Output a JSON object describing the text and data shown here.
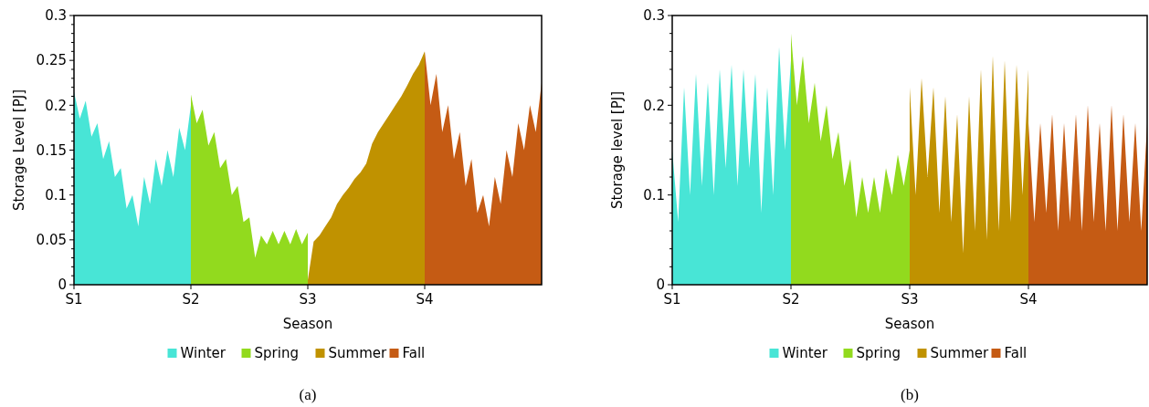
{
  "chart_data": [
    {
      "type": "area",
      "xlabel": "Season",
      "ylabel": "Storage Level [PJ]",
      "annotations": [
        "(a)"
      ],
      "legend": "bottom",
      "grid": false,
      "categories": [
        "S1",
        null,
        null,
        null,
        null,
        null,
        null,
        null,
        null,
        null,
        null,
        null,
        null,
        null,
        null,
        null,
        null,
        null,
        null,
        null,
        "S2",
        null,
        null,
        null,
        null,
        null,
        null,
        null,
        null,
        null,
        null,
        null,
        null,
        null,
        null,
        null,
        null,
        null,
        null,
        null,
        "S3",
        null,
        null,
        null,
        null,
        null,
        null,
        null,
        null,
        null,
        null,
        null,
        null,
        null,
        null,
        null,
        null,
        null,
        null,
        null,
        "S4",
        null,
        null,
        null,
        null,
        null,
        null,
        null,
        null,
        null,
        null,
        null,
        null,
        null,
        null,
        null,
        null,
        null,
        null,
        null,
        null
      ],
      "ylim": [
        0,
        0.3
      ],
      "yticks": [
        0,
        {
          "value": 0.01,
          "label": null
        },
        {
          "value": 0.02,
          "label": null
        },
        {
          "value": 0.03,
          "label": null
        },
        {
          "value": 0.04,
          "label": null
        },
        0.05,
        {
          "value": 0.06,
          "label": null
        },
        {
          "value": 0.07,
          "label": null
        },
        {
          "value": 0.08,
          "label": null
        },
        {
          "value": 0.09,
          "label": null
        },
        0.1,
        {
          "value": 0.11,
          "label": null
        },
        {
          "value": 0.12,
          "label": null
        },
        {
          "value": 0.13,
          "label": null
        },
        {
          "value": 0.14,
          "label": null
        },
        0.15,
        {
          "value": 0.16,
          "label": null
        },
        {
          "value": 0.17,
          "label": null
        },
        {
          "value": 0.18,
          "label": null
        },
        {
          "value": 0.19,
          "label": null
        },
        0.2,
        {
          "value": 0.21,
          "label": null
        },
        {
          "value": 0.22,
          "label": null
        },
        {
          "value": 0.23,
          "label": null
        },
        {
          "value": 0.24,
          "label": null
        },
        0.25,
        {
          "value": 0.26,
          "label": null
        },
        {
          "value": 0.27,
          "label": null
        },
        {
          "value": 0.28,
          "label": null
        },
        {
          "value": 0.29,
          "label": null
        },
        0.3
      ],
      "series": [
        {
          "name": "Winter",
          "color": "#48e5d6",
          "values": [
            0.215,
            0.185,
            0.205,
            0.165,
            0.18,
            0.14,
            0.16,
            0.12,
            0.13,
            0.085,
            0.1,
            0.065,
            0.12,
            0.09,
            0.14,
            0.11,
            0.15,
            0.12,
            0.175,
            0.15,
            0.2,
            null,
            null,
            null,
            null,
            null,
            null,
            null,
            null,
            null,
            null,
            null,
            null,
            null,
            null,
            null,
            null,
            null,
            null,
            null,
            null,
            null,
            null,
            null,
            null,
            null,
            null,
            null,
            null,
            null,
            null,
            null,
            null,
            null,
            null,
            null,
            null,
            null,
            null,
            null,
            null,
            null,
            null,
            null,
            null,
            null,
            null,
            null,
            null,
            null,
            null,
            null,
            null,
            null,
            null,
            null,
            null,
            null,
            null,
            null,
            null
          ]
        },
        {
          "name": "Spring",
          "color": "#92da1e",
          "values": [
            null,
            null,
            null,
            null,
            null,
            null,
            null,
            null,
            null,
            null,
            null,
            null,
            null,
            null,
            null,
            null,
            null,
            null,
            null,
            null,
            0.212,
            0.18,
            0.195,
            0.155,
            0.17,
            0.13,
            0.14,
            0.1,
            0.11,
            0.07,
            0.075,
            0.03,
            0.055,
            0.045,
            0.06,
            0.045,
            0.06,
            0.045,
            0.062,
            0.045,
            0.058,
            null,
            null,
            null,
            null,
            null,
            null,
            null,
            null,
            null,
            null,
            null,
            null,
            null,
            null,
            null,
            null,
            null,
            null,
            null,
            null,
            null,
            null,
            null,
            null,
            null,
            null,
            null,
            null,
            null,
            null,
            null,
            null,
            null,
            null,
            null,
            null,
            null,
            null,
            null,
            null
          ]
        },
        {
          "name": "Summer",
          "color": "#c09200",
          "values": [
            null,
            null,
            null,
            null,
            null,
            null,
            null,
            null,
            null,
            null,
            null,
            null,
            null,
            null,
            null,
            null,
            null,
            null,
            null,
            null,
            null,
            null,
            null,
            null,
            null,
            null,
            null,
            null,
            null,
            null,
            null,
            null,
            null,
            null,
            null,
            null,
            null,
            null,
            null,
            null,
            0.005,
            0.048,
            0.055,
            0.065,
            0.075,
            0.09,
            0.1,
            0.108,
            0.118,
            0.125,
            0.135,
            0.157,
            0.17,
            0.18,
            0.19,
            0.2,
            0.21,
            0.222,
            0.235,
            0.245,
            0.26,
            null,
            null,
            null,
            null,
            null,
            null,
            null,
            null,
            null,
            null,
            null,
            null,
            null,
            null,
            null,
            null,
            null,
            null,
            null,
            null
          ]
        },
        {
          "name": "Fall",
          "color": "#c55b14",
          "values": [
            null,
            null,
            null,
            null,
            null,
            null,
            null,
            null,
            null,
            null,
            null,
            null,
            null,
            null,
            null,
            null,
            null,
            null,
            null,
            null,
            null,
            null,
            null,
            null,
            null,
            null,
            null,
            null,
            null,
            null,
            null,
            null,
            null,
            null,
            null,
            null,
            null,
            null,
            null,
            null,
            null,
            null,
            null,
            null,
            null,
            null,
            null,
            null,
            null,
            null,
            null,
            null,
            null,
            null,
            null,
            null,
            null,
            null,
            null,
            null,
            0.26,
            0.2,
            0.235,
            0.17,
            0.2,
            0.14,
            0.17,
            0.11,
            0.14,
            0.08,
            0.1,
            0.065,
            0.12,
            0.09,
            0.15,
            0.12,
            0.18,
            0.15,
            0.2,
            0.17,
            0.225
          ]
        }
      ]
    },
    {
      "type": "area",
      "xlabel": "Season",
      "ylabel": "Storage level [PJ]",
      "annotations": [
        "(b)"
      ],
      "legend": "bottom",
      "grid": false,
      "categories": [
        "S1",
        null,
        null,
        null,
        null,
        null,
        null,
        null,
        null,
        null,
        null,
        null,
        null,
        null,
        null,
        null,
        null,
        null,
        null,
        null,
        "S2",
        null,
        null,
        null,
        null,
        null,
        null,
        null,
        null,
        null,
        null,
        null,
        null,
        null,
        null,
        null,
        null,
        null,
        null,
        null,
        "S3",
        null,
        null,
        null,
        null,
        null,
        null,
        null,
        null,
        null,
        null,
        null,
        null,
        null,
        null,
        null,
        null,
        null,
        null,
        null,
        "S4",
        null,
        null,
        null,
        null,
        null,
        null,
        null,
        null,
        null,
        null,
        null,
        null,
        null,
        null,
        null,
        null,
        null,
        null,
        null,
        null
      ],
      "ylim": [
        0,
        0.3
      ],
      "yticks": [
        0,
        {
          "value": 0.02,
          "label": null
        },
        {
          "value": 0.04,
          "label": null
        },
        {
          "value": 0.06,
          "label": null
        },
        {
          "value": 0.08,
          "label": null
        },
        0.1,
        {
          "value": 0.12,
          "label": null
        },
        {
          "value": 0.14,
          "label": null
        },
        {
          "value": 0.16,
          "label": null
        },
        {
          "value": 0.18,
          "label": null
        },
        0.2,
        {
          "value": 0.22,
          "label": null
        },
        {
          "value": 0.24,
          "label": null
        },
        {
          "value": 0.26,
          "label": null
        },
        {
          "value": 0.28,
          "label": null
        },
        0.3
      ],
      "series": [
        {
          "name": "Winter",
          "color": "#48e5d6",
          "values": [
            0.15,
            0.07,
            0.22,
            0.1,
            0.235,
            0.11,
            0.225,
            0.1,
            0.24,
            0.13,
            0.245,
            0.11,
            0.24,
            0.13,
            0.235,
            0.08,
            0.22,
            0.1,
            0.265,
            0.15,
            0.25,
            null,
            null,
            null,
            null,
            null,
            null,
            null,
            null,
            null,
            null,
            null,
            null,
            null,
            null,
            null,
            null,
            null,
            null,
            null,
            null,
            null,
            null,
            null,
            null,
            null,
            null,
            null,
            null,
            null,
            null,
            null,
            null,
            null,
            null,
            null,
            null,
            null,
            null,
            null,
            null,
            null,
            null,
            null,
            null,
            null,
            null,
            null,
            null,
            null,
            null,
            null,
            null,
            null,
            null,
            null,
            null,
            null,
            null,
            null,
            null
          ]
        },
        {
          "name": "Spring",
          "color": "#92da1e",
          "values": [
            null,
            null,
            null,
            null,
            null,
            null,
            null,
            null,
            null,
            null,
            null,
            null,
            null,
            null,
            null,
            null,
            null,
            null,
            null,
            null,
            0.28,
            0.2,
            0.255,
            0.18,
            0.225,
            0.16,
            0.2,
            0.14,
            0.17,
            0.11,
            0.14,
            0.075,
            0.12,
            0.08,
            0.12,
            0.08,
            0.13,
            0.1,
            0.145,
            0.11,
            0.15,
            null,
            null,
            null,
            null,
            null,
            null,
            null,
            null,
            null,
            null,
            null,
            null,
            null,
            null,
            null,
            null,
            null,
            null,
            null,
            null,
            null,
            null,
            null,
            null,
            null,
            null,
            null,
            null,
            null,
            null,
            null,
            null,
            null,
            null,
            null,
            null,
            null,
            null,
            null,
            null
          ]
        },
        {
          "name": "Summer",
          "color": "#c09200",
          "values": [
            null,
            null,
            null,
            null,
            null,
            null,
            null,
            null,
            null,
            null,
            null,
            null,
            null,
            null,
            null,
            null,
            null,
            null,
            null,
            null,
            null,
            null,
            null,
            null,
            null,
            null,
            null,
            null,
            null,
            null,
            null,
            null,
            null,
            null,
            null,
            null,
            null,
            null,
            null,
            null,
            0.22,
            0.1,
            0.23,
            0.12,
            0.22,
            0.08,
            0.21,
            0.07,
            0.19,
            0.035,
            0.21,
            0.06,
            0.24,
            0.05,
            0.255,
            0.06,
            0.25,
            0.07,
            0.245,
            0.1,
            0.24,
            null,
            null,
            null,
            null,
            null,
            null,
            null,
            null,
            null,
            null,
            null,
            null,
            null,
            null,
            null,
            null,
            null,
            null,
            null,
            null
          ]
        },
        {
          "name": "Fall",
          "color": "#c55b14",
          "values": [
            null,
            null,
            null,
            null,
            null,
            null,
            null,
            null,
            null,
            null,
            null,
            null,
            null,
            null,
            null,
            null,
            null,
            null,
            null,
            null,
            null,
            null,
            null,
            null,
            null,
            null,
            null,
            null,
            null,
            null,
            null,
            null,
            null,
            null,
            null,
            null,
            null,
            null,
            null,
            null,
            null,
            null,
            null,
            null,
            null,
            null,
            null,
            null,
            null,
            null,
            null,
            null,
            null,
            null,
            null,
            null,
            null,
            null,
            null,
            null,
            0.18,
            0.07,
            0.18,
            0.08,
            0.19,
            0.06,
            0.18,
            0.07,
            0.19,
            0.06,
            0.2,
            0.07,
            0.18,
            0.06,
            0.2,
            0.06,
            0.19,
            0.07,
            0.18,
            0.06,
            0.18
          ]
        }
      ]
    }
  ]
}
